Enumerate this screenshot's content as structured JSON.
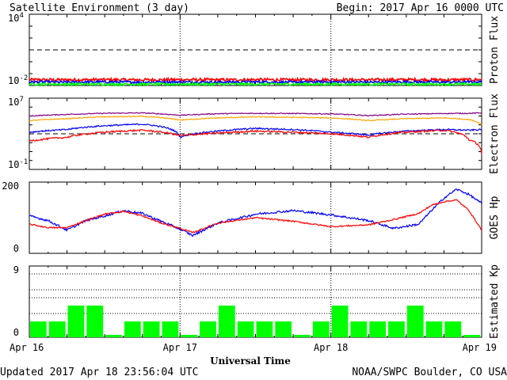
{
  "header": {
    "title": "Satellite Environment (3 day)",
    "begin": "Begin:  2017 Apr 16 0000 UTC"
  },
  "footer": {
    "updated": "Updated 2017 Apr 18 23:56:04 UTC",
    "credit": "NOAA/SWPC Boulder, CO USA"
  },
  "chart_data": [
    {
      "type": "line",
      "ylabel": "Proton Flux",
      "yscale": "log",
      "ylim": [
        0.01,
        10000
      ],
      "yticks": [
        {
          "exp": "4"
        },
        {
          "exp": "-2"
        }
      ],
      "threshold": 10,
      "x": [
        0,
        6,
        12,
        18,
        24,
        30,
        36,
        42,
        48,
        54,
        60,
        66,
        72
      ],
      "series": [
        {
          "color": "#ff0000",
          "values": [
            0.031,
            0.03,
            0.031,
            0.03,
            0.031,
            0.03,
            0.031,
            0.03,
            0.031,
            0.03,
            0.031,
            0.03,
            0.031
          ],
          "noise": 0.12
        },
        {
          "color": "#0000ff",
          "values": [
            0.02,
            0.019,
            0.02,
            0.019,
            0.02,
            0.019,
            0.02,
            0.019,
            0.02,
            0.019,
            0.02,
            0.019,
            0.02
          ],
          "noise": 0.1
        },
        {
          "color": "#00ff00",
          "values": [
            0.013,
            0.013,
            0.013,
            0.013,
            0.013,
            0.013,
            0.013,
            0.013,
            0.013,
            0.013,
            0.013,
            0.013,
            0.013
          ],
          "noise": 0.1
        }
      ]
    },
    {
      "type": "line",
      "ylabel": "Electron Flux",
      "yscale": "log",
      "ylim": [
        0.1,
        10000000
      ],
      "yticks": [
        {
          "exp": "7"
        },
        {
          "exp": "-1"
        }
      ],
      "threshold": 1000,
      "x": [
        0,
        6,
        12,
        18,
        24,
        30,
        36,
        42,
        48,
        54,
        60,
        66,
        70,
        72
      ],
      "series": [
        {
          "color": "#800080",
          "values": [
            100000,
            150000,
            200000,
            220000,
            120000,
            180000,
            200000,
            190000,
            170000,
            110000,
            160000,
            190000,
            200000,
            220000
          ],
          "noise": 0.05
        },
        {
          "color": "#ffa500",
          "values": [
            30000,
            50000,
            80000,
            90000,
            35000,
            60000,
            80000,
            70000,
            60000,
            30000,
            50000,
            60000,
            40000,
            10000
          ],
          "noise": 0.05
        },
        {
          "color": "#0000ff",
          "values": [
            1500,
            3000,
            8000,
            12000,
            400,
            2000,
            4000,
            3000,
            1500,
            700,
            2000,
            3000,
            2500,
            3000
          ],
          "noise": 0.08
        },
        {
          "color": "#ff0000",
          "values": [
            150,
            400,
            1500,
            2500,
            600,
            1200,
            2000,
            1500,
            1000,
            400,
            1500,
            2500,
            200,
            5
          ],
          "noise": 0.1
        }
      ]
    },
    {
      "type": "line",
      "ylabel": "GOES Hp",
      "ylim": [
        0,
        200
      ],
      "yticks": [
        {
          "label": "200",
          "value": 200
        },
        {
          "label": "0",
          "value": 0
        }
      ],
      "x": [
        0,
        3,
        6,
        9,
        12,
        15,
        18,
        21,
        24,
        26,
        30,
        36,
        42,
        48,
        54,
        58,
        62,
        64,
        66,
        68,
        70,
        72
      ],
      "series": [
        {
          "color": "#0000ff",
          "values": [
            105,
            92,
            65,
            92,
            105,
            120,
            112,
            90,
            68,
            50,
            85,
            110,
            120,
            108,
            92,
            70,
            82,
            120,
            155,
            180,
            165,
            140
          ],
          "noise": 3
        },
        {
          "color": "#ff0000",
          "values": [
            82,
            72,
            72,
            92,
            110,
            118,
            105,
            85,
            70,
            58,
            85,
            100,
            90,
            75,
            80,
            95,
            112,
            135,
            145,
            150,
            120,
            65
          ],
          "noise": 2
        }
      ]
    },
    {
      "type": "bar",
      "ylabel": "Estimated Kp",
      "ylim": [
        0,
        9
      ],
      "yticks": [
        {
          "label": "9",
          "value": 9
        },
        {
          "label": "0",
          "value": 0
        }
      ],
      "gridlines": [
        3,
        5,
        6,
        8
      ],
      "color": "#00ff00",
      "values": [
        2,
        2,
        4,
        4,
        0.3,
        2,
        2,
        2,
        0.3,
        2,
        4,
        2,
        2,
        2,
        0.3,
        2,
        4,
        2,
        2,
        2,
        4,
        2,
        2,
        0.3
      ]
    }
  ],
  "xaxis": {
    "label": "Universal Time",
    "range_hours": [
      0,
      72
    ],
    "ticks": [
      {
        "label": "Apr 16",
        "hour": 0
      },
      {
        "label": "Apr 17",
        "hour": 24
      },
      {
        "label": "Apr 18",
        "hour": 48
      },
      {
        "label": "Apr 19",
        "hour": 72
      }
    ]
  }
}
